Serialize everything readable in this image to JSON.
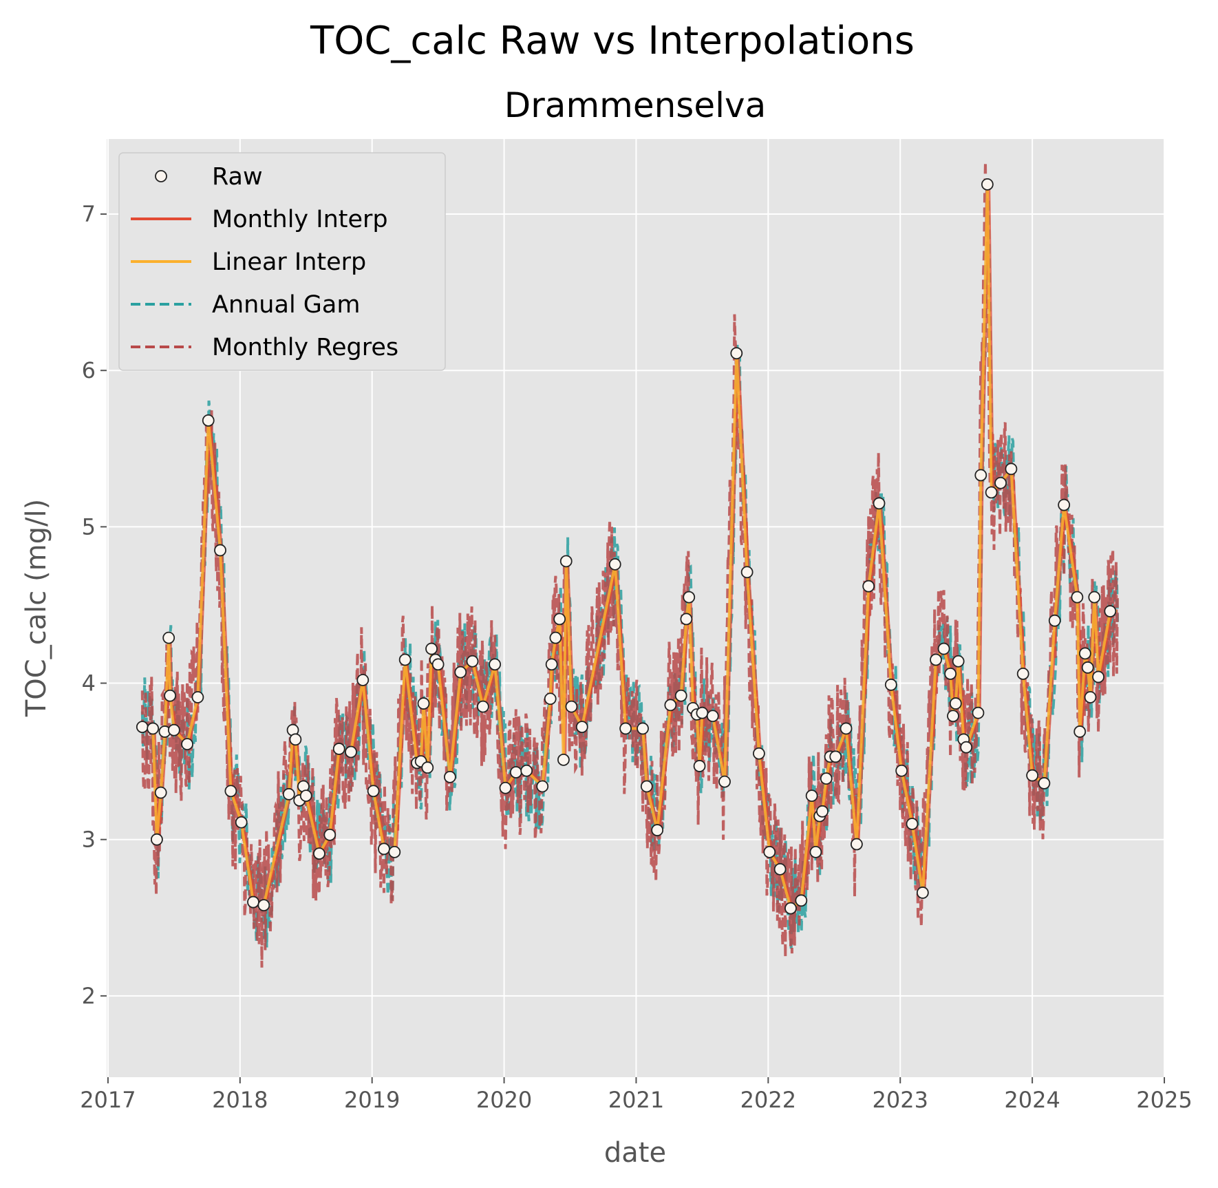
{
  "chart_data": {
    "type": "line",
    "title": "TOC_calc Raw vs Interpolations",
    "subtitle": "Drammenselva",
    "xlabel": "date",
    "ylabel": "TOC_calc (mg/l)",
    "xlim": [
      2016.99,
      2025.0
    ],
    "ylim": [
      1.48,
      7.48
    ],
    "x_ticks": [
      "2017",
      "2018",
      "2019",
      "2020",
      "2021",
      "2022",
      "2023",
      "2024",
      "2025"
    ],
    "y_ticks": [
      "2",
      "3",
      "4",
      "5",
      "6",
      "7"
    ],
    "grid": true,
    "legend_position": "upper-left",
    "colors": {
      "Raw": "#ffffff",
      "Monthly Interp": "#e24a33",
      "Linear Interp": "#fbb02d",
      "Annual Gam": "#2ba0a0",
      "Monthly Regres": "#b84a4a",
      "background": "#e5e5e5"
    },
    "legend": [
      "Raw",
      "Monthly Interp",
      "Linear Interp",
      "Annual Gam",
      "Monthly Regres"
    ],
    "raw_points": [
      [
        2017.26,
        3.72
      ],
      [
        2017.34,
        3.71
      ],
      [
        2017.37,
        3.0
      ],
      [
        2017.4,
        3.3
      ],
      [
        2017.43,
        3.69
      ],
      [
        2017.46,
        4.29
      ],
      [
        2017.47,
        3.92
      ],
      [
        2017.5,
        3.7
      ],
      [
        2017.6,
        3.61
      ],
      [
        2017.68,
        3.91
      ],
      [
        2017.76,
        5.68
      ],
      [
        2017.85,
        4.85
      ],
      [
        2017.93,
        3.31
      ],
      [
        2018.01,
        3.11
      ],
      [
        2018.1,
        2.6
      ],
      [
        2018.18,
        2.58
      ],
      [
        2018.37,
        3.29
      ],
      [
        2018.4,
        3.7
      ],
      [
        2018.42,
        3.64
      ],
      [
        2018.45,
        3.25
      ],
      [
        2018.48,
        3.34
      ],
      [
        2018.5,
        3.28
      ],
      [
        2018.6,
        2.91
      ],
      [
        2018.68,
        3.03
      ],
      [
        2018.75,
        3.58
      ],
      [
        2018.84,
        3.56
      ],
      [
        2018.93,
        4.02
      ],
      [
        2019.01,
        3.31
      ],
      [
        2019.09,
        2.94
      ],
      [
        2019.17,
        2.92
      ],
      [
        2019.25,
        4.15
      ],
      [
        2019.34,
        3.49
      ],
      [
        2019.37,
        3.5
      ],
      [
        2019.39,
        3.87
      ],
      [
        2019.42,
        3.46
      ],
      [
        2019.45,
        4.22
      ],
      [
        2019.48,
        4.15
      ],
      [
        2019.5,
        4.12
      ],
      [
        2019.59,
        3.4
      ],
      [
        2019.67,
        4.07
      ],
      [
        2019.76,
        4.14
      ],
      [
        2019.84,
        3.85
      ],
      [
        2019.93,
        4.12
      ],
      [
        2020.01,
        3.33
      ],
      [
        2020.09,
        3.43
      ],
      [
        2020.17,
        3.44
      ],
      [
        2020.29,
        3.34
      ],
      [
        2020.35,
        3.9
      ],
      [
        2020.36,
        4.12
      ],
      [
        2020.39,
        4.29
      ],
      [
        2020.42,
        4.41
      ],
      [
        2020.45,
        3.51
      ],
      [
        2020.47,
        4.78
      ],
      [
        2020.51,
        3.85
      ],
      [
        2020.59,
        3.72
      ],
      [
        2020.84,
        4.76
      ],
      [
        2020.92,
        3.71
      ],
      [
        2021.05,
        3.71
      ],
      [
        2021.08,
        3.34
      ],
      [
        2021.16,
        3.06
      ],
      [
        2021.26,
        3.86
      ],
      [
        2021.34,
        3.92
      ],
      [
        2021.38,
        4.41
      ],
      [
        2021.4,
        4.55
      ],
      [
        2021.43,
        3.84
      ],
      [
        2021.46,
        3.8
      ],
      [
        2021.48,
        3.47
      ],
      [
        2021.5,
        3.81
      ],
      [
        2021.58,
        3.79
      ],
      [
        2021.67,
        3.37
      ],
      [
        2021.76,
        6.11
      ],
      [
        2021.84,
        4.71
      ],
      [
        2021.93,
        3.55
      ],
      [
        2022.01,
        2.92
      ],
      [
        2022.09,
        2.81
      ],
      [
        2022.17,
        2.56
      ],
      [
        2022.25,
        2.61
      ],
      [
        2022.33,
        3.28
      ],
      [
        2022.36,
        2.92
      ],
      [
        2022.39,
        3.15
      ],
      [
        2022.41,
        3.18
      ],
      [
        2022.44,
        3.39
      ],
      [
        2022.47,
        3.53
      ],
      [
        2022.51,
        3.53
      ],
      [
        2022.59,
        3.71
      ],
      [
        2022.67,
        2.97
      ],
      [
        2022.76,
        4.62
      ],
      [
        2022.84,
        5.15
      ],
      [
        2022.93,
        3.99
      ],
      [
        2023.01,
        3.44
      ],
      [
        2023.09,
        3.1
      ],
      [
        2023.17,
        2.66
      ],
      [
        2023.27,
        4.15
      ],
      [
        2023.33,
        4.22
      ],
      [
        2023.38,
        4.06
      ],
      [
        2023.4,
        3.79
      ],
      [
        2023.42,
        3.87
      ],
      [
        2023.44,
        4.14
      ],
      [
        2023.48,
        3.64
      ],
      [
        2023.5,
        3.59
      ],
      [
        2023.59,
        3.81
      ],
      [
        2023.61,
        5.33
      ],
      [
        2023.66,
        7.19
      ],
      [
        2023.69,
        5.22
      ],
      [
        2023.76,
        5.28
      ],
      [
        2023.84,
        5.37
      ],
      [
        2023.93,
        4.06
      ],
      [
        2024.0,
        3.41
      ],
      [
        2024.09,
        3.36
      ],
      [
        2024.17,
        4.4
      ],
      [
        2024.24,
        5.14
      ],
      [
        2024.34,
        4.55
      ],
      [
        2024.36,
        3.69
      ],
      [
        2024.4,
        4.19
      ],
      [
        2024.42,
        4.1
      ],
      [
        2024.44,
        3.91
      ],
      [
        2024.47,
        4.55
      ],
      [
        2024.5,
        4.04
      ],
      [
        2024.59,
        4.46
      ]
    ],
    "notes": "Line series (Monthly Interp, Linear Interp) connect the Raw observations; Annual Gam and Monthly Regres are noisy daily-resolution estimates fluctuating around the raw values."
  }
}
